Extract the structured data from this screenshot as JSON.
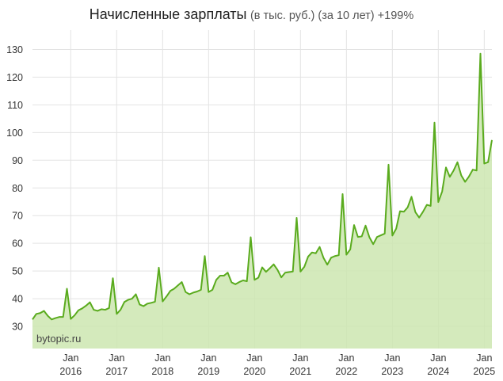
{
  "chart_data": {
    "type": "area",
    "title": "Начисленные зарплаты",
    "subtitle": "(в тыс. руб.) (за 10 лет) +199%",
    "watermark": "bytopic.ru",
    "xlabel": "",
    "ylabel": "",
    "ylim": [
      22,
      137
    ],
    "xlim": [
      "2015-03",
      "2025-03"
    ],
    "y_ticks": [
      30,
      40,
      50,
      60,
      70,
      80,
      90,
      100,
      110,
      120,
      130
    ],
    "x_ticks": [
      {
        "month": "Jan",
        "year": "2016",
        "date": "2016-01"
      },
      {
        "month": "Jan",
        "year": "2017",
        "date": "2017-01"
      },
      {
        "month": "Jan",
        "year": "2018",
        "date": "2018-01"
      },
      {
        "month": "Jan",
        "year": "2019",
        "date": "2019-01"
      },
      {
        "month": "Jan",
        "year": "2020",
        "date": "2020-01"
      },
      {
        "month": "Jan",
        "year": "2021",
        "date": "2021-01"
      },
      {
        "month": "Jan",
        "year": "2022",
        "date": "2022-01"
      },
      {
        "month": "Jan",
        "year": "2023",
        "date": "2023-01"
      },
      {
        "month": "Jan",
        "year": "2024",
        "date": "2024-01"
      },
      {
        "month": "Jan",
        "year": "2025",
        "date": "2025-01"
      }
    ],
    "grid": true,
    "colors": {
      "line": "#5aab1e",
      "fill": "#cde6b0",
      "grid": "#e3e3e3"
    },
    "series": [
      {
        "x": [
          "2015-03",
          "2015-04",
          "2015-05",
          "2015-06",
          "2015-07",
          "2015-08",
          "2015-09",
          "2015-10",
          "2015-11",
          "2015-12",
          "2016-01",
          "2016-02",
          "2016-03",
          "2016-04",
          "2016-05",
          "2016-06",
          "2016-07",
          "2016-08",
          "2016-09",
          "2016-10",
          "2016-11",
          "2016-12",
          "2017-01",
          "2017-02",
          "2017-03",
          "2017-04",
          "2017-05",
          "2017-06",
          "2017-07",
          "2017-08",
          "2017-09",
          "2017-10",
          "2017-11",
          "2017-12",
          "2018-01",
          "2018-02",
          "2018-03",
          "2018-04",
          "2018-05",
          "2018-06",
          "2018-07",
          "2018-08",
          "2018-09",
          "2018-10",
          "2018-11",
          "2018-12",
          "2019-01",
          "2019-02",
          "2019-03",
          "2019-04",
          "2019-05",
          "2019-06",
          "2019-07",
          "2019-08",
          "2019-09",
          "2019-10",
          "2019-11",
          "2019-12",
          "2020-01",
          "2020-02",
          "2020-03",
          "2020-04",
          "2020-05",
          "2020-06",
          "2020-07",
          "2020-08",
          "2020-09",
          "2020-10",
          "2020-11",
          "2020-12",
          "2021-01",
          "2021-02",
          "2021-03",
          "2021-04",
          "2021-05",
          "2021-06",
          "2021-07",
          "2021-08",
          "2021-09",
          "2021-10",
          "2021-11",
          "2021-12",
          "2022-01",
          "2022-02",
          "2022-03",
          "2022-04",
          "2022-05",
          "2022-06",
          "2022-07",
          "2022-08",
          "2022-09",
          "2022-10",
          "2022-11",
          "2022-12",
          "2023-01",
          "2023-02",
          "2023-03",
          "2023-04",
          "2023-05",
          "2023-06",
          "2023-07",
          "2023-08",
          "2023-09",
          "2023-10",
          "2023-11",
          "2023-12",
          "2024-01",
          "2024-02",
          "2024-03",
          "2024-04",
          "2024-05",
          "2024-06",
          "2024-07",
          "2024-08",
          "2024-09",
          "2024-10",
          "2024-11",
          "2024-12",
          "2025-01",
          "2025-02",
          "2025-03"
        ],
        "values": [
          32.5,
          34.5,
          34.8,
          35.6,
          33.8,
          32.5,
          33.0,
          33.4,
          33.4,
          43.6,
          32.7,
          34.0,
          35.8,
          36.5,
          37.5,
          38.7,
          36.0,
          35.6,
          36.2,
          36.0,
          36.6,
          47.4,
          34.5,
          36.0,
          38.8,
          39.6,
          40.0,
          41.6,
          37.9,
          37.3,
          38.2,
          38.5,
          38.9,
          51.2,
          39.0,
          40.8,
          42.8,
          43.6,
          44.8,
          46.0,
          42.4,
          41.6,
          42.2,
          42.6,
          43.2,
          55.4,
          42.4,
          43.2,
          46.8,
          48.3,
          48.3,
          49.4,
          45.9,
          45.2,
          46.0,
          46.6,
          46.3,
          62.2,
          46.8,
          47.6,
          51.3,
          49.7,
          51.0,
          52.4,
          50.4,
          47.7,
          49.4,
          49.6,
          49.8,
          69.2,
          49.8,
          51.5,
          55.2,
          56.7,
          56.4,
          58.7,
          54.8,
          52.3,
          54.8,
          55.4,
          55.7,
          77.8,
          55.9,
          57.8,
          66.6,
          62.3,
          62.5,
          66.4,
          62.2,
          59.7,
          62.3,
          62.9,
          63.5,
          88.4,
          62.8,
          65.3,
          71.6,
          71.4,
          73.0,
          76.8,
          71.3,
          69.3,
          71.4,
          73.9,
          73.5,
          103.6,
          74.9,
          78.7,
          87.4,
          84.0,
          86.3,
          89.3,
          84.5,
          82.2,
          84.1,
          86.6,
          86.3,
          128.5,
          88.8,
          89.3,
          97.3
        ]
      }
    ]
  }
}
